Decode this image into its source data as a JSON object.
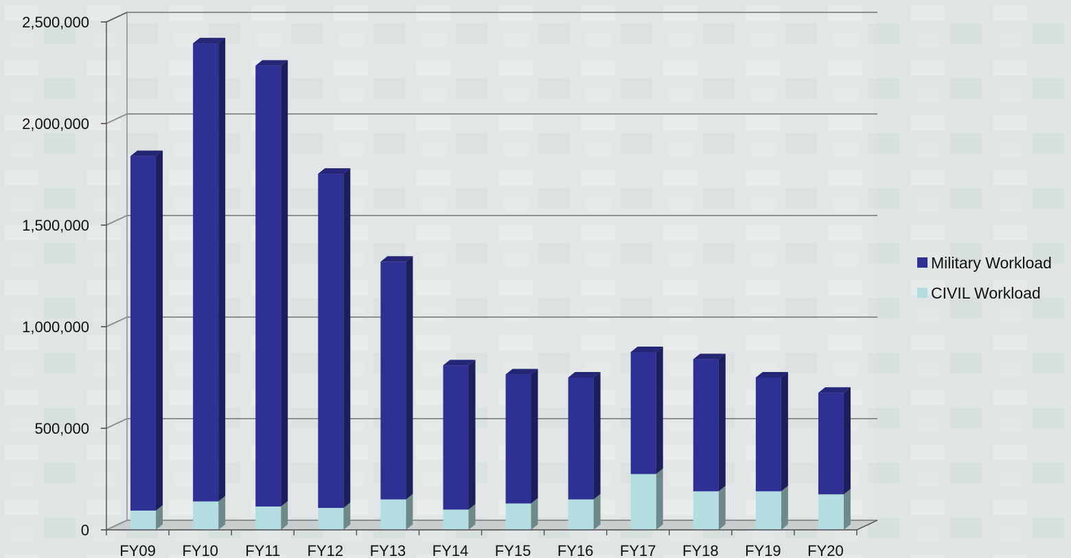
{
  "chart_data": {
    "type": "bar",
    "stacked": true,
    "three_d": true,
    "categories": [
      "FY09",
      "FY10",
      "FY11",
      "FY12",
      "FY13",
      "FY14",
      "FY15",
      "FY16",
      "FY17",
      "FY18",
      "FY19",
      "FY20"
    ],
    "series": [
      {
        "name": "CIVIL Workload",
        "color": "#b3dde0",
        "values": [
          95000,
          140000,
          115000,
          108000,
          150000,
          100000,
          130000,
          150000,
          275000,
          190000,
          190000,
          175000
        ]
      },
      {
        "name": "Military Workload",
        "color": "#2e3094",
        "values": [
          1745000,
          2255000,
          2170000,
          1645000,
          1170000,
          710000,
          635000,
          600000,
          600000,
          650000,
          560000,
          500000
        ]
      }
    ],
    "ylim": [
      0,
      2500000
    ],
    "yticks": [
      0,
      500000,
      1000000,
      1500000,
      2000000,
      2500000
    ],
    "ytick_labels": [
      "0",
      "500,000",
      "1,000,000",
      "1,500,000",
      "2,000,000",
      "2,500,000"
    ],
    "grid": true,
    "legend_position": "right"
  }
}
